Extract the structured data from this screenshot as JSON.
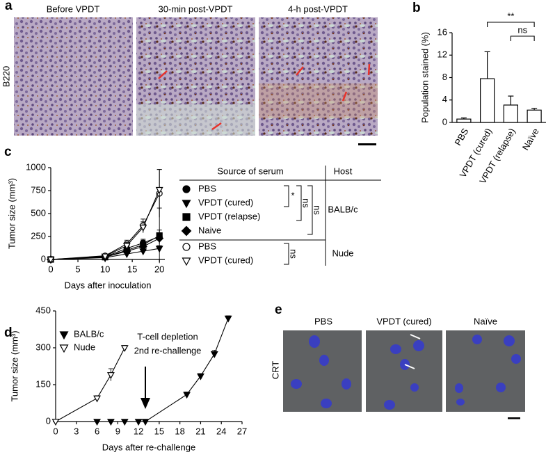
{
  "panel_labels": [
    "a",
    "b",
    "c",
    "d",
    "e"
  ],
  "panel_a": {
    "titles": [
      "Before VPDT",
      "30-min post-VPDT",
      "4-h post-VPDT"
    ],
    "row_label": "B220"
  },
  "panel_e": {
    "titles": [
      "PBS",
      "VPDT (cured)",
      "Naïve"
    ],
    "row_label": "CRT"
  },
  "chart_data": [
    {
      "type": "bar",
      "ylabel": "Population stained (%)",
      "categories": [
        "PBS",
        "VPDT (cured)",
        "VPDT (relapse)",
        "Naïve"
      ],
      "values": [
        0.6,
        7.8,
        3.1,
        2.2
      ],
      "errors": [
        0.2,
        4.8,
        1.6,
        0.3
      ],
      "color": "#ffffff",
      "ylim": [
        0,
        16
      ],
      "yticks": [
        0,
        4,
        8,
        12,
        16
      ],
      "annotations": [
        {
          "text": "**",
          "from": 1,
          "to": 3
        },
        {
          "text": "ns",
          "from": 2,
          "to": 3
        }
      ]
    },
    {
      "type": "line",
      "xlabel": "Days after inoculation",
      "ylabel": "Tumor size (mm³)",
      "x": [
        0,
        10,
        14,
        17,
        20
      ],
      "xlim": [
        0,
        21
      ],
      "xticks": [
        0,
        5,
        10,
        15,
        20
      ],
      "ylim": [
        0,
        1000
      ],
      "yticks": [
        0,
        250,
        500,
        750,
        1000
      ],
      "series": [
        {
          "name": "PBS",
          "marker": "circle",
          "filled": true,
          "color": "#000000",
          "values": [
            0,
            30,
            120,
            180,
            250
          ],
          "errors": [
            0,
            10,
            30,
            40,
            70
          ]
        },
        {
          "name": "VPDT (cured)",
          "marker": "triangle-down",
          "filled": true,
          "color": "#000000",
          "values": [
            0,
            20,
            60,
            90,
            120
          ],
          "errors": [
            0,
            8,
            20,
            25,
            30
          ]
        },
        {
          "name": "VPDT (relapse)",
          "marker": "square",
          "filled": true,
          "color": "#000000",
          "values": [
            0,
            25,
            100,
            160,
            260
          ],
          "errors": [
            0,
            10,
            30,
            50,
            300
          ]
        },
        {
          "name": "Naive",
          "marker": "diamond",
          "filled": true,
          "color": "#000000",
          "values": [
            0,
            25,
            90,
            140,
            230
          ],
          "errors": [
            0,
            10,
            25,
            40,
            60
          ]
        },
        {
          "name": "PBS",
          "marker": "circle",
          "filled": false,
          "color": "#000000",
          "values": [
            0,
            40,
            170,
            370,
            720
          ],
          "errors": [
            0,
            12,
            40,
            70,
            260
          ]
        },
        {
          "name": "VPDT (cured)",
          "marker": "triangle-down",
          "filled": false,
          "color": "#000000",
          "values": [
            0,
            35,
            150,
            350,
            760
          ],
          "errors": [
            0,
            12,
            35,
            60,
            220
          ]
        }
      ],
      "legend_table": {
        "headers": [
          "Source of serum",
          "Host"
        ],
        "hosts": [
          {
            "text": "BALB/c",
            "rows": [
              0,
              3
            ]
          },
          {
            "text": "Nude",
            "rows": [
              4,
              5
            ]
          }
        ],
        "significance": [
          {
            "text": "*",
            "rows": [
              0,
              1
            ]
          },
          {
            "text": "ns",
            "rows": [
              0,
              2
            ]
          },
          {
            "text": "ns",
            "rows": [
              0,
              3
            ]
          },
          {
            "text": "ns",
            "rows": [
              4,
              5
            ]
          }
        ]
      }
    },
    {
      "type": "line",
      "xlabel": "Days after re-challenge",
      "ylabel": "Tumor size (mm³)",
      "xlim": [
        0,
        27
      ],
      "xticks": [
        0,
        3,
        6,
        9,
        12,
        15,
        18,
        21,
        24,
        27
      ],
      "ylim": [
        0,
        450
      ],
      "yticks": [
        0,
        150,
        300,
        450
      ],
      "legend": "upper left",
      "annotation": [
        "T-cell depletion",
        "2nd re-challenge"
      ],
      "series": [
        {
          "name": "BALB/c",
          "marker": "triangle-down",
          "filled": true,
          "color": "#000000",
          "x": [
            6,
            8,
            10,
            12,
            13,
            19,
            21,
            23,
            25
          ],
          "values": [
            0,
            0,
            0,
            0,
            0,
            110,
            185,
            275,
            420
          ],
          "errors": [
            0,
            0,
            0,
            0,
            0,
            10,
            10,
            15,
            10
          ]
        },
        {
          "name": "Nude",
          "marker": "triangle-down",
          "filled": false,
          "color": "#000000",
          "x": [
            0,
            6,
            8,
            10
          ],
          "values": [
            0,
            95,
            190,
            300
          ],
          "errors": [
            0,
            10,
            25,
            10
          ]
        }
      ]
    }
  ]
}
